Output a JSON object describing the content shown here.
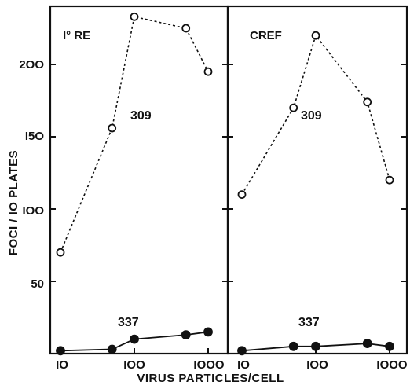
{
  "chart_data": {
    "type": "line",
    "xlabel": "VIRUS PARTICLES/CELL",
    "ylabel": "FOCI / IO PLATES",
    "x_scale": "log",
    "xlim": [
      7,
      1300
    ],
    "ylim": [
      0,
      240
    ],
    "x_ticks": [
      10,
      100,
      1000
    ],
    "x_tick_labels": [
      "IO",
      "IOO",
      "IOOO"
    ],
    "y_ticks": [
      50,
      100,
      150,
      200
    ],
    "y_tick_labels": [
      "50",
      "IOO",
      "I5O",
      "2OO"
    ],
    "panels": [
      {
        "title": "I° RE",
        "series": [
          {
            "name": "309",
            "marker": "open-circle",
            "line": "dashed",
            "x": [
              10,
              50,
              100,
              500,
              1000
            ],
            "y": [
              70,
              156,
              233,
              225,
              195
            ]
          },
          {
            "name": "337",
            "marker": "filled-circle",
            "line": "solid",
            "x": [
              10,
              50,
              100,
              500,
              1000
            ],
            "y": [
              2,
              3,
              10,
              13,
              15
            ]
          }
        ]
      },
      {
        "title": "CREF",
        "series": [
          {
            "name": "309",
            "marker": "open-circle",
            "line": "dashed",
            "x": [
              10,
              50,
              100,
              500,
              1000
            ],
            "y": [
              110,
              170,
              220,
              174,
              120
            ]
          },
          {
            "name": "337",
            "marker": "filled-circle",
            "line": "solid",
            "x": [
              10,
              50,
              100,
              500,
              1000
            ],
            "y": [
              2,
              5,
              5,
              7,
              5
            ]
          }
        ]
      }
    ]
  }
}
